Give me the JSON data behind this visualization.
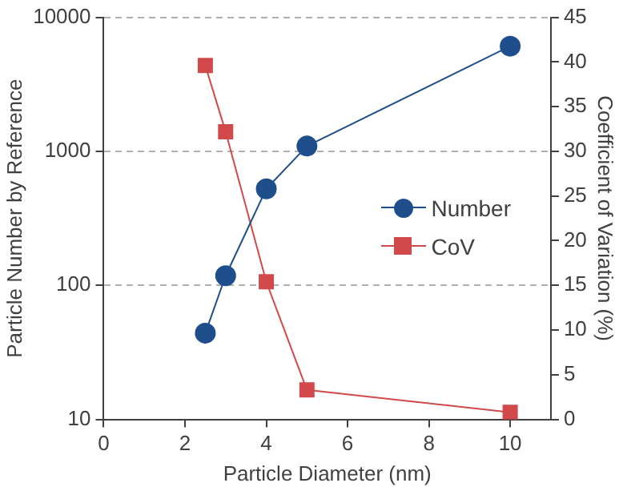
{
  "chart_data": {
    "type": "line",
    "xlabel": "Particle Diameter (nm)",
    "ylabel": "Particle Number by Reference",
    "y2label": "Coefficient of Variation (%)",
    "x": [
      2.5,
      3,
      4,
      5,
      10
    ],
    "series": [
      {
        "name": "Number",
        "color": "#1f4e8c",
        "values": [
          44,
          118,
          525,
          1095,
          6090
        ],
        "marker": "circle"
      },
      {
        "name": "CoV",
        "color": "#d2494c",
        "values": [
          39.6,
          32.2,
          15.4,
          3.3,
          0.8
        ],
        "marker": "square",
        "axis": "y2"
      }
    ],
    "xlim": [
      0,
      11
    ],
    "xticks": [
      0,
      2,
      4,
      6,
      8,
      10
    ],
    "ylim": [
      10,
      10000
    ],
    "yticks": [
      10,
      100,
      1000,
      10000
    ],
    "log": "y",
    "y2lim": [
      0,
      45
    ],
    "y2ticks": [
      0,
      5,
      10,
      15,
      20,
      25,
      30,
      35,
      40,
      45
    ],
    "grid": "y",
    "legend": "right"
  }
}
